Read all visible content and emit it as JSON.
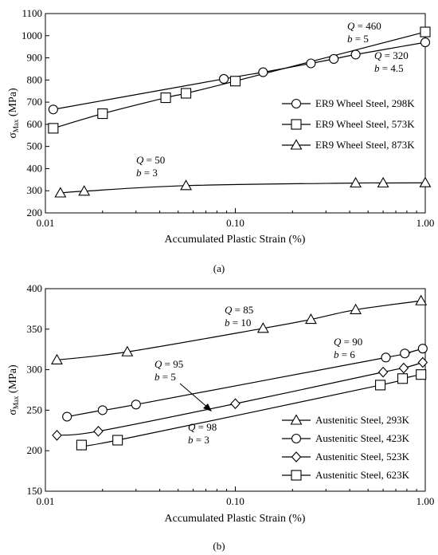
{
  "chart_data": [
    {
      "type": "line",
      "panel_label": "(a)",
      "xlabel": "Accumulated Plastic Strain (%)",
      "ylabel": "σMax (MPa)",
      "ylabel_main": "σ",
      "ylabel_sub": "Max",
      "ylabel_unit": " (MPa)",
      "xscale": "log",
      "xlim": [
        0.01,
        1.0
      ],
      "ylim": [
        200,
        1100
      ],
      "xticks": [
        0.01,
        0.1,
        1.0
      ],
      "xtick_labels": [
        "0.01",
        "0.10",
        "1.00"
      ],
      "yticks": [
        200,
        300,
        400,
        500,
        600,
        700,
        800,
        900,
        1000,
        1100
      ],
      "ytick_labels": [
        "200",
        "300",
        "400",
        "500",
        "600",
        "700",
        "800",
        "900",
        "1000",
        "1100"
      ],
      "legend_position": "right",
      "series": [
        {
          "name": "ER9 Wheel Steel, 298K",
          "marker": "circle",
          "x": [
            0.011,
            0.087,
            0.14,
            0.25,
            0.33,
            0.43,
            1.0
          ],
          "y": [
            667,
            805,
            835,
            875,
            895,
            915,
            970
          ]
        },
        {
          "name": "ER9 Wheel Steel, 573K",
          "marker": "square",
          "x": [
            0.011,
            0.02,
            0.043,
            0.055,
            0.1,
            1.0
          ],
          "y": [
            582,
            648,
            720,
            740,
            795,
            1017
          ]
        },
        {
          "name": "ER9 Wheel Steel, 873K",
          "marker": "triangle",
          "x": [
            0.012,
            0.016,
            0.055,
            0.43,
            0.6,
            1.0
          ],
          "y": [
            290,
            298,
            323,
            335,
            335,
            336
          ]
        }
      ],
      "annotations": [
        {
          "q": "460",
          "b": "5"
        },
        {
          "q": "320",
          "b": "4.5"
        },
        {
          "q": "50",
          "b": "3"
        }
      ]
    },
    {
      "type": "line",
      "panel_label": "(b)",
      "xlabel": "Accumulated Plastic Strain (%)",
      "ylabel": "σMax (MPa)",
      "ylabel_main": "σ",
      "ylabel_sub": "Max",
      "ylabel_unit": " (MPa)",
      "xscale": "log",
      "xlim": [
        0.01,
        1.0
      ],
      "ylim": [
        150,
        400
      ],
      "xticks": [
        0.01,
        0.1,
        1.0
      ],
      "xtick_labels": [
        "0.01",
        "0.10",
        "1.00"
      ],
      "yticks": [
        150,
        200,
        250,
        300,
        350,
        400
      ],
      "ytick_labels": [
        "150",
        "200",
        "250",
        "300",
        "350",
        "400"
      ],
      "legend_position": "bottom-right",
      "series": [
        {
          "name": "Austenitic Steel, 293K",
          "marker": "triangle",
          "x": [
            0.0115,
            0.027,
            0.14,
            0.25,
            0.43,
            0.95
          ],
          "y": [
            312,
            322,
            351,
            362,
            374,
            385
          ]
        },
        {
          "name": "Austenitic Steel, 423K",
          "marker": "circle",
          "x": [
            0.013,
            0.02,
            0.03,
            0.62,
            0.78,
            0.97
          ],
          "y": [
            242,
            250,
            257,
            315,
            320,
            326
          ]
        },
        {
          "name": "Austenitic Steel, 523K",
          "marker": "diamond",
          "x": [
            0.0115,
            0.019,
            0.1,
            0.6,
            0.77,
            0.97
          ],
          "y": [
            219,
            224,
            258,
            297,
            302,
            309
          ]
        },
        {
          "name": "Austenitic Steel, 623K",
          "marker": "square",
          "x": [
            0.0155,
            0.024,
            0.58,
            0.76,
            0.95
          ],
          "y": [
            207,
            213,
            281,
            289,
            294
          ]
        }
      ],
      "annotations": [
        {
          "q": "85",
          "b": "10"
        },
        {
          "q": "90",
          "b": "6"
        },
        {
          "q": "95",
          "b": "5"
        },
        {
          "q": "98",
          "b": "3"
        }
      ]
    }
  ],
  "labels": {
    "q_prefix": "Q",
    "b_prefix": "b",
    "eq": " = "
  }
}
